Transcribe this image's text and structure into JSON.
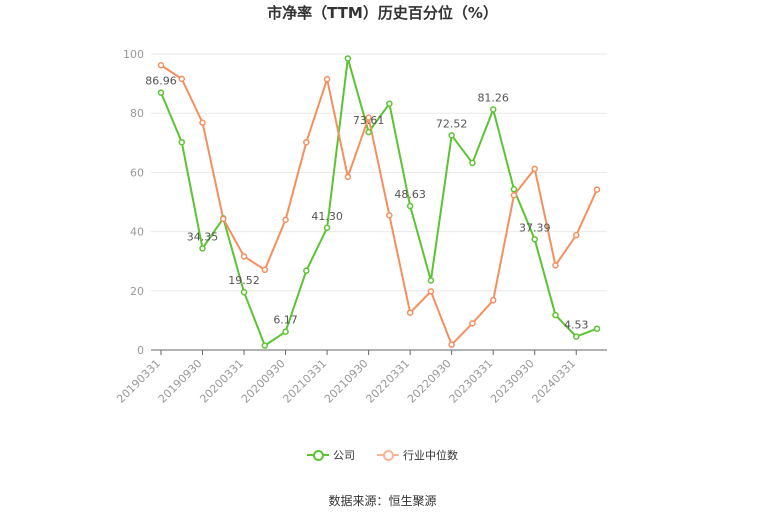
{
  "title": "市净率（TTM）历史百分位（%）",
  "source": "数据来源：恒生聚源",
  "colors": {
    "company": "#5cc433",
    "industry": "#f5905e",
    "grid": "#e8e8e8",
    "axis": "#999999",
    "label": "#555555"
  },
  "legend": {
    "company": "公司",
    "industry": "行业中位数"
  },
  "chart_data": {
    "type": "line",
    "ylim": [
      0,
      100
    ],
    "y_ticks": [
      "0",
      "20",
      "40",
      "60",
      "80",
      "100"
    ],
    "x_tick_labels": [
      "20190331",
      "20190930",
      "20200331",
      "20200930",
      "20210331",
      "20210930",
      "20220331",
      "20220930",
      "20230331",
      "20230930",
      "20240331"
    ],
    "x": [
      "20190331",
      "20190630",
      "20190930",
      "20191231",
      "20200331",
      "20200630",
      "20200930",
      "20201231",
      "20210331",
      "20210630",
      "20210930",
      "20211231",
      "20220331",
      "20220630",
      "20220930",
      "20221231",
      "20230331",
      "20230630",
      "20230930",
      "20231231",
      "20240331",
      "20240630"
    ],
    "series": [
      {
        "name": "公司",
        "values": [
          86.96,
          70.2,
          34.35,
          44.5,
          19.52,
          1.5,
          6.17,
          26.8,
          41.3,
          98.5,
          73.61,
          83.2,
          48.63,
          23.5,
          72.52,
          63.2,
          81.26,
          54.3,
          37.39,
          11.8,
          4.53,
          7.2
        ],
        "data_labels": [
          {
            "i": 0,
            "text": "86.96"
          },
          {
            "i": 2,
            "text": "34.35"
          },
          {
            "i": 4,
            "text": "19.52"
          },
          {
            "i": 6,
            "text": "6.17"
          },
          {
            "i": 8,
            "text": "41.30"
          },
          {
            "i": 10,
            "text": "73.61"
          },
          {
            "i": 12,
            "text": "48.63"
          },
          {
            "i": 14,
            "text": "72.52"
          },
          {
            "i": 16,
            "text": "81.26"
          },
          {
            "i": 18,
            "text": "37.39"
          },
          {
            "i": 20,
            "text": "4.53"
          }
        ]
      },
      {
        "name": "行业中位数",
        "values": [
          96.2,
          91.6,
          76.8,
          44.3,
          31.6,
          27.1,
          44.0,
          70.2,
          91.5,
          58.5,
          78.5,
          45.5,
          12.6,
          19.8,
          1.8,
          9.0,
          16.8,
          52.3,
          61.2,
          28.6,
          38.8,
          54.2
        ]
      }
    ]
  }
}
